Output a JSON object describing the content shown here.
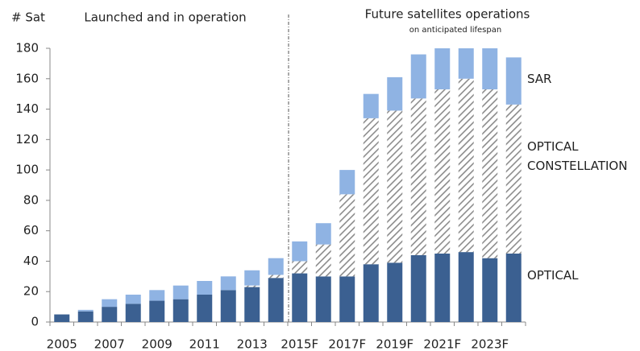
{
  "chart_data": {
    "type": "stacked_bar",
    "title": "Launched and in operation",
    "subtitle": "Future satellites operations",
    "annotation": "on anticipated lifespan",
    "y_label": "# Sat",
    "categories": [
      "2005",
      null,
      "2007",
      null,
      "2009",
      null,
      "2011",
      null,
      "2013",
      null,
      "2015F",
      null,
      "2017F",
      null,
      "2019F",
      null,
      "2021F",
      null,
      "2023F",
      null
    ],
    "series": [
      {
        "name": "OPTICAL",
        "color": "#3b6091",
        "values": [
          5,
          7,
          10,
          12,
          14,
          15,
          18,
          21,
          23,
          29,
          32,
          30,
          30,
          38,
          39,
          44,
          45,
          46,
          42,
          45
        ]
      },
      {
        "name": "OPTICAL CONSTELLATION",
        "color": "#8c8c8c",
        "values": [
          0,
          0,
          0,
          0,
          0,
          0,
          0,
          0,
          1,
          2,
          8,
          21,
          54,
          96,
          100,
          103,
          108,
          114,
          111,
          98
        ]
      },
      {
        "name": "SAR",
        "color": "#8fb3e3",
        "values": [
          0,
          1,
          5,
          6,
          7,
          9,
          9,
          9,
          10,
          11,
          13,
          14,
          16,
          16,
          22,
          29,
          27,
          20,
          27,
          31
        ]
      }
    ],
    "ylim": [
      0,
      180
    ],
    "yticks": [
      0,
      20,
      40,
      60,
      80,
      100,
      120,
      140,
      160,
      180
    ]
  }
}
